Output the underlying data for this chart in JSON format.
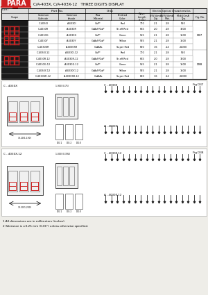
{
  "title_main": "C/A-403X, C/A-403X-12   THREE DIGITS DISPLAY",
  "table_rows_d37": [
    [
      "C-4030I",
      "A-4030I",
      "GaP*",
      "Red",
      "700",
      "2.1",
      "2.8",
      "550",
      "D37"
    ],
    [
      "C-4030R",
      "A-4030R",
      "GaAsP/GaP",
      "Sh.eff.Red",
      "635",
      "2.0",
      "2.8",
      "1900",
      ""
    ],
    [
      "C-4030G",
      "A-4030G",
      "GaP*",
      "Green",
      "565",
      "2.1",
      "2.8",
      "1500",
      ""
    ],
    [
      "C-4030Y",
      "A-4030Y",
      "GaAsP/GaP",
      "Yellow",
      "585",
      "2.1",
      "2.8",
      "1500",
      ""
    ],
    [
      "C-4030SR",
      "A-4030SR",
      "GaAlAs",
      "Super Red",
      "660",
      "1.6",
      "2.4",
      "21000",
      ""
    ]
  ],
  "table_rows_d38": [
    [
      "C-4030I-12",
      "A-4030I-12",
      "GaP*",
      "Red",
      "700",
      "2.1",
      "2.8",
      "550",
      "D38"
    ],
    [
      "C-4030R-12",
      "A-4030R-12",
      "GaAsP/GaP",
      "Sh.eff.Red",
      "635",
      "2.0",
      "2.8",
      "1900",
      ""
    ],
    [
      "C-4030G-12",
      "A-4030G-12",
      "GaP*",
      "Green",
      "565",
      "2.1",
      "2.8",
      "1500",
      ""
    ],
    [
      "C-4030Y-12",
      "A-4030Y-12",
      "GaAsP/GaP",
      "Yellow",
      "585",
      "2.1",
      "2.8",
      "1500",
      ""
    ],
    [
      "C-4030SR-12",
      "A-4030SR-12",
      "GaAlAs",
      "Super Red",
      "660",
      "1.6",
      "2.4",
      "21000",
      ""
    ]
  ],
  "note1": "1.All dimensions are in millimeters (inches).",
  "note2": "2.Tolerance is ±0.25 mm (0.01\") unless otherwise specified.",
  "bg_color": "#eeede8",
  "white": "#ffffff",
  "red": "#cc2020",
  "dark": "#1a1a1a",
  "gray_header": "#dedede",
  "gray_line": "#aaaaaa",
  "watermark": "#aec8e0",
  "pin_color": "#222222"
}
